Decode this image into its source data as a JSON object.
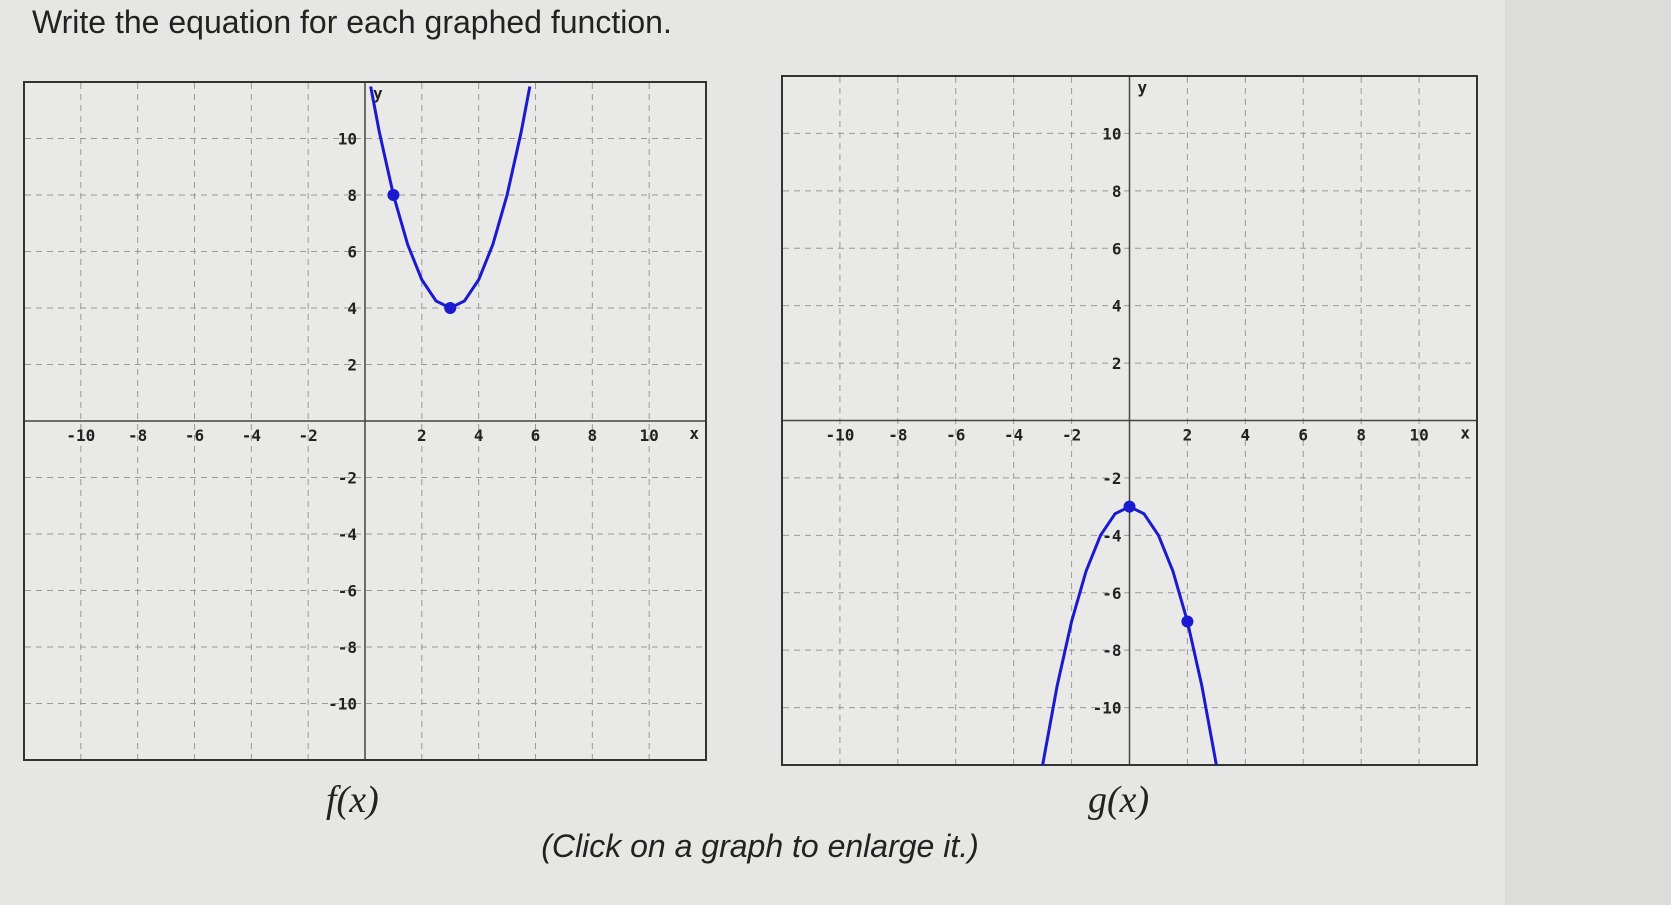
{
  "header": {
    "title": "Write the equation for each graphed function."
  },
  "footer": {
    "note": "(Click on a graph to enlarge it.)"
  },
  "chart_data": [
    {
      "type": "line",
      "title": "f(x)",
      "x_label": "x",
      "y_label": "y",
      "xlim": [
        -12,
        12
      ],
      "ylim": [
        -12,
        12
      ],
      "xticks": [
        -10,
        -8,
        -6,
        -4,
        -2,
        2,
        4,
        6,
        8,
        10
      ],
      "yticks": [
        -10,
        -8,
        -6,
        -4,
        -2,
        2,
        4,
        6,
        8,
        10
      ],
      "grid": true,
      "color": "#1a1ad0",
      "x": [
        0.2,
        0.5,
        1,
        1.5,
        2,
        2.5,
        3,
        3.5,
        4,
        4.5,
        5,
        5.5,
        5.8
      ],
      "values": [
        11.84,
        10.25,
        8,
        6.25,
        5,
        4.25,
        4,
        4.25,
        5,
        6.25,
        8,
        10.25,
        11.84
      ],
      "points": {
        "x": [
          1,
          3
        ],
        "values": [
          8,
          4
        ]
      }
    },
    {
      "type": "line",
      "title": "g(x)",
      "x_label": "x",
      "y_label": "y",
      "xlim": [
        -12,
        12
      ],
      "ylim": [
        -12,
        12
      ],
      "xticks": [
        -10,
        -8,
        -6,
        -4,
        -2,
        2,
        4,
        6,
        8,
        10
      ],
      "yticks": [
        -10,
        -8,
        -6,
        -4,
        -2,
        2,
        4,
        6,
        8,
        10
      ],
      "grid": true,
      "color": "#1a1ad0",
      "x": [
        -3,
        -2.5,
        -2,
        -1.5,
        -1,
        -0.5,
        0,
        0.5,
        1,
        1.5,
        2,
        2.5,
        3
      ],
      "values": [
        -12,
        -9.25,
        -7,
        -5.25,
        -4,
        -3.25,
        -3,
        -3.25,
        -4,
        -5.25,
        -7,
        -9.25,
        -12
      ],
      "points": {
        "x": [
          0,
          2
        ],
        "values": [
          -3,
          -7
        ]
      }
    }
  ]
}
